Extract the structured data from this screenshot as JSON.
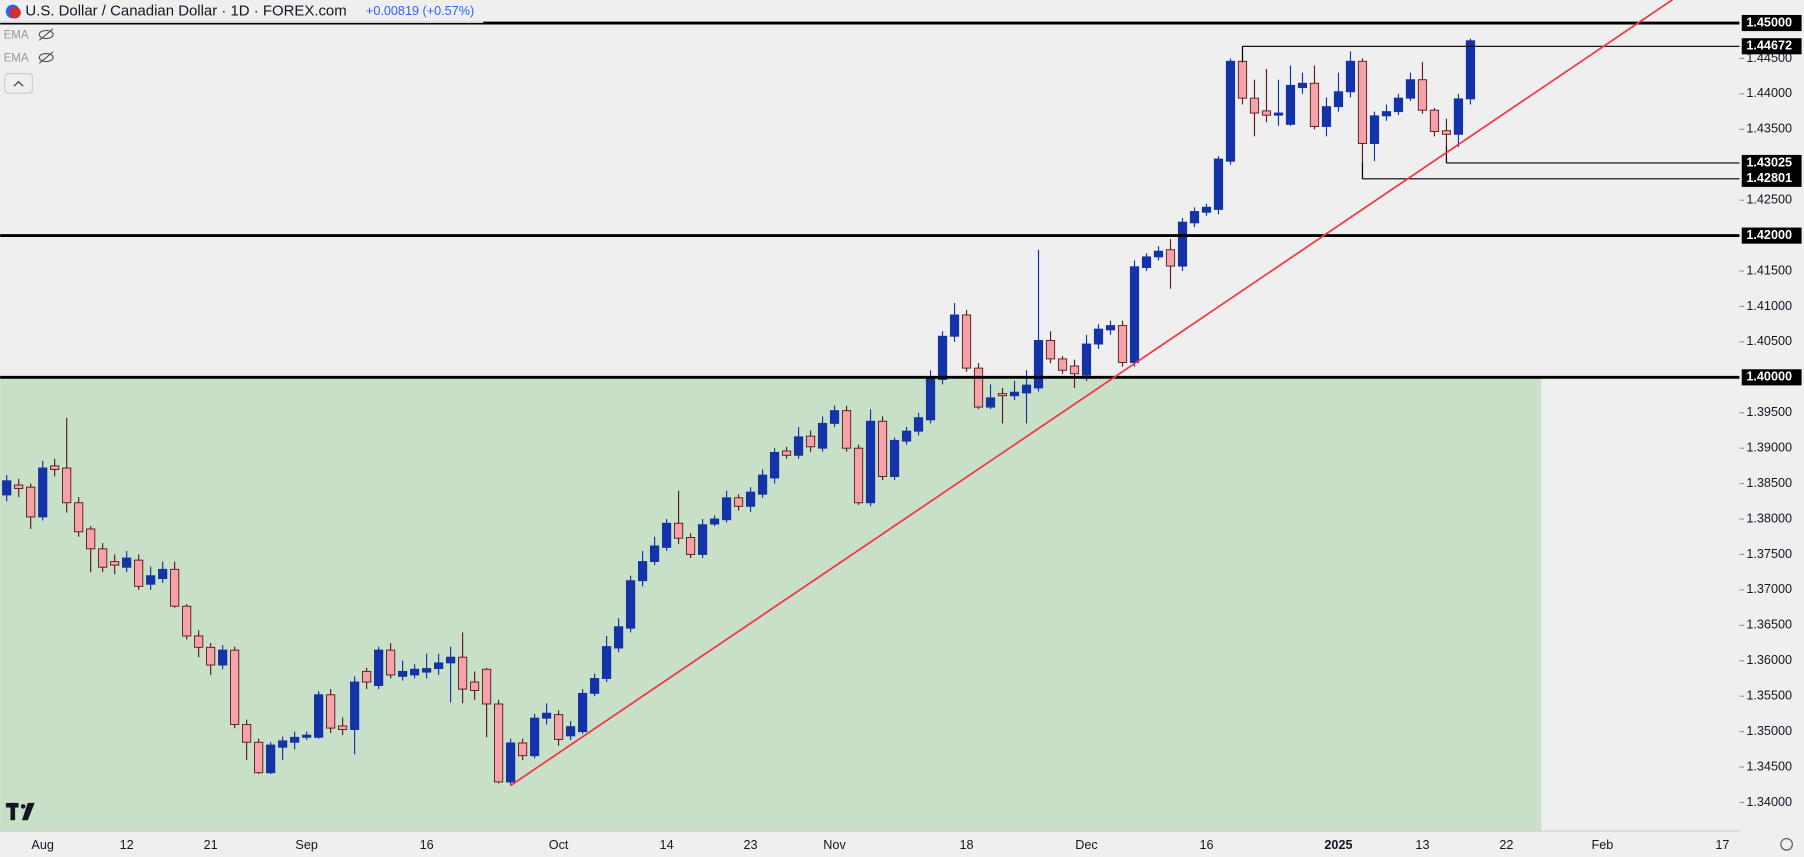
{
  "chart_data": {
    "type": "candlestick",
    "title": "U.S. Dollar / Canadian Dollar · 1D · FOREX.com",
    "change": "+0.00819 (+0.57%)",
    "indicators": [
      "EMA",
      "EMA"
    ],
    "up_color": "#1433a8",
    "down_color": "#f4a4a9",
    "categories": [
      null,
      null,
      null,
      "Aug",
      null,
      null,
      null,
      null,
      null,
      null,
      "12",
      null,
      null,
      null,
      null,
      null,
      null,
      "21",
      null,
      null,
      null,
      null,
      null,
      null,
      null,
      "Sep",
      null,
      null,
      null,
      null,
      null,
      null,
      null,
      null,
      null,
      "16",
      null,
      null,
      null,
      null,
      null,
      null,
      null,
      null,
      null,
      null,
      "Oct",
      null,
      null,
      null,
      null,
      null,
      null,
      null,
      null,
      "14",
      null,
      null,
      null,
      null,
      null,
      null,
      "23",
      null,
      null,
      null,
      null,
      null,
      null,
      "Nov",
      null,
      null,
      null,
      null,
      null,
      null,
      null,
      null,
      null,
      null,
      "18",
      null,
      null,
      null,
      null,
      null,
      null,
      null,
      null,
      null,
      "Dec",
      null,
      null,
      null,
      null,
      null,
      null,
      null,
      null,
      null,
      "16",
      null,
      null,
      null,
      null,
      null,
      null,
      null,
      null,
      null,
      null,
      "2025",
      null,
      null,
      null,
      null,
      null,
      null,
      "13",
      null,
      null,
      null,
      null,
      null,
      null,
      "22",
      null,
      null,
      null,
      null,
      null,
      null,
      null,
      "Feb",
      null,
      null,
      null,
      null,
      null,
      null,
      null,
      null,
      null,
      "17",
      null
    ],
    "open": [
      1.3834,
      1.3848,
      1.3845,
      1.3803,
      1.3875,
      1.3872,
      1.3823,
      1.3786,
      1.3758,
      1.374,
      1.3732,
      1.3742,
      1.3708,
      1.3716,
      1.3729,
      1.3677,
      1.3635,
      1.3619,
      1.3594,
      1.3615,
      1.351,
      1.3485,
      1.3442,
      1.3478,
      1.3485,
      1.3492,
      1.3492,
      1.3552,
      1.3508,
      1.3503,
      1.3585,
      1.3565,
      1.3615,
      1.3578,
      1.358,
      1.3584,
      1.3589,
      1.3597,
      1.3605,
      1.357,
      1.3588,
      1.3539,
      1.3429,
      1.3484,
      1.3466,
      1.3519,
      1.3524,
      1.3494,
      1.35,
      1.3554,
      1.3575,
      1.3618,
      1.3646,
      1.3713,
      1.374,
      1.376,
      1.3794,
      1.3774,
      1.375,
      1.3793,
      1.3799,
      1.383,
      1.3818,
      1.3835,
      1.3858,
      1.3896,
      1.389,
      1.3917,
      1.39,
      1.3935,
      1.3953,
      1.39,
      1.3823,
      1.3938,
      1.386,
      1.391,
      1.3924,
      1.394,
      1.3997,
      1.4058,
      1.4088,
      1.4013,
      1.3958,
      1.3977,
      1.3974,
      1.3978,
      1.3985,
      1.4052,
      1.4026,
      1.4016,
      1.4003,
      1.4047,
      1.4067,
      1.4073,
      1.4021,
      1.4155,
      1.417,
      1.418,
      1.4157,
      1.4218,
      1.4233,
      1.4237,
      1.4305,
      1.4446,
      1.4394,
      1.4376,
      1.437,
      1.4357,
      1.4409,
      1.4415,
      1.4354,
      1.4382,
      1.4403,
      1.4446,
      1.433,
      1.4369,
      1.4375,
      1.4394,
      1.442,
      1.4377,
      1.4348,
      1.4343,
      1.4393,
      null,
      null,
      null,
      null,
      null,
      null,
      null,
      null,
      null,
      null,
      null,
      null,
      null,
      null,
      null,
      null,
      null,
      null,
      null,
      null,
      null,
      null
    ],
    "high": [
      1.3862,
      1.3857,
      1.385,
      1.3882,
      1.3885,
      1.3943,
      1.3831,
      1.379,
      1.3766,
      1.375,
      1.3755,
      1.375,
      1.3733,
      1.374,
      1.374,
      1.368,
      1.3643,
      1.3625,
      1.3622,
      1.362,
      1.3517,
      1.349,
      1.3485,
      1.3493,
      1.35,
      1.35,
      1.3557,
      1.356,
      1.352,
      1.3578,
      1.359,
      1.362,
      1.3625,
      1.36,
      1.3595,
      1.361,
      1.361,
      1.362,
      1.364,
      1.3585,
      1.359,
      1.3545,
      1.349,
      1.349,
      1.3525,
      1.354,
      1.353,
      1.3515,
      1.356,
      1.3582,
      1.3635,
      1.366,
      1.372,
      1.3755,
      1.3775,
      1.38,
      1.384,
      1.378,
      1.38,
      1.3805,
      1.384,
      1.3835,
      1.3845,
      1.387,
      1.39,
      1.3902,
      1.393,
      1.3925,
      1.3945,
      1.396,
      1.396,
      1.3905,
      1.3955,
      1.3945,
      1.3915,
      1.393,
      1.395,
      1.401,
      1.4065,
      1.4105,
      1.4095,
      1.402,
      1.399,
      1.3985,
      1.3995,
      1.401,
      1.418,
      1.4065,
      1.403,
      1.4025,
      1.406,
      1.4075,
      1.408,
      1.408,
      1.4165,
      1.4175,
      1.4185,
      1.4195,
      1.4225,
      1.424,
      1.4245,
      1.4312,
      1.445,
      1.44672,
      1.442,
      1.4435,
      1.442,
      1.444,
      1.443,
      1.444,
      1.4395,
      1.443,
      1.446,
      1.445,
      1.4375,
      1.4385,
      1.44,
      1.443,
      1.4445,
      1.438,
      1.4365,
      1.44,
      1.4478,
      null,
      null,
      null,
      null,
      null,
      null,
      null,
      null,
      null,
      null,
      null,
      null,
      null,
      null,
      null,
      null,
      null,
      null,
      null,
      null,
      null,
      null
    ],
    "low": [
      1.3825,
      1.3831,
      1.3786,
      1.3798,
      1.386,
      1.3809,
      1.3775,
      1.3725,
      1.3725,
      1.3722,
      1.3725,
      1.37,
      1.37,
      1.371,
      1.3675,
      1.363,
      1.3605,
      1.358,
      1.3588,
      1.3505,
      1.346,
      1.344,
      1.344,
      1.346,
      1.3475,
      1.3488,
      1.349,
      1.3498,
      1.3495,
      1.3468,
      1.356,
      1.356,
      1.3575,
      1.3572,
      1.3575,
      1.3575,
      1.358,
      1.3541,
      1.354,
      1.3545,
      1.3492,
      1.3427,
      1.3424,
      1.346,
      1.3462,
      1.351,
      1.348,
      1.3488,
      1.3497,
      1.355,
      1.357,
      1.3612,
      1.364,
      1.3705,
      1.3735,
      1.3755,
      1.3765,
      1.3745,
      1.3745,
      1.379,
      1.3795,
      1.3812,
      1.381,
      1.383,
      1.385,
      1.3885,
      1.3885,
      1.3895,
      1.3895,
      1.393,
      1.3895,
      1.382,
      1.3818,
      1.3855,
      1.3855,
      1.3905,
      1.3918,
      1.3935,
      1.399,
      1.405,
      1.4008,
      1.3955,
      1.3955,
      1.3935,
      1.3968,
      1.3935,
      1.398,
      1.402,
      1.4005,
      1.3985,
      1.3995,
      1.404,
      1.406,
      1.4015,
      1.4015,
      1.415,
      1.4165,
      1.4125,
      1.415,
      1.4212,
      1.4228,
      1.423,
      1.43,
      1.4385,
      1.434,
      1.436,
      1.4355,
      1.4355,
      1.44,
      1.435,
      1.434,
      1.4375,
      1.4395,
      1.42801,
      1.4305,
      1.4362,
      1.437,
      1.439,
      1.4372,
      1.434,
      1.43025,
      1.4325,
      1.4385,
      null,
      null,
      null,
      null,
      null,
      null,
      null,
      null,
      null,
      null,
      null,
      null,
      null,
      null,
      null,
      null,
      null,
      null,
      null,
      null,
      null,
      null
    ],
    "close": [
      1.3854,
      1.3843,
      1.3803,
      1.3872,
      1.387,
      1.3823,
      1.3782,
      1.3758,
      1.3732,
      1.3735,
      1.3745,
      1.3705,
      1.372,
      1.3729,
      1.3677,
      1.3635,
      1.3619,
      1.3594,
      1.3615,
      1.351,
      1.3485,
      1.3442,
      1.3481,
      1.3487,
      1.3492,
      1.3495,
      1.3552,
      1.3505,
      1.3503,
      1.357,
      1.357,
      1.3615,
      1.358,
      1.3585,
      1.3588,
      1.3589,
      1.3597,
      1.3605,
      1.356,
      1.3558,
      1.3539,
      1.3429,
      1.3484,
      1.3466,
      1.3519,
      1.3526,
      1.3489,
      1.3507,
      1.3554,
      1.3575,
      1.362,
      1.3648,
      1.3713,
      1.374,
      1.3762,
      1.3794,
      1.3773,
      1.375,
      1.3792,
      1.38,
      1.383,
      1.3818,
      1.3838,
      1.3862,
      1.3894,
      1.389,
      1.3916,
      1.3902,
      1.3935,
      1.3953,
      1.39,
      1.3823,
      1.3938,
      1.386,
      1.3911,
      1.3924,
      1.3943,
      1.4,
      1.4058,
      1.4088,
      1.4013,
      1.3958,
      1.3971,
      1.3974,
      1.3979,
      1.3989,
      1.4052,
      1.4026,
      1.401,
      1.4005,
      1.4047,
      1.4068,
      1.4073,
      1.4021,
      1.4156,
      1.417,
      1.4178,
      1.4157,
      1.4219,
      1.4234,
      1.424,
      1.4308,
      1.4446,
      1.4394,
      1.4373,
      1.437,
      1.4373,
      1.4412,
      1.4415,
      1.4354,
      1.4382,
      1.4403,
      1.4446,
      1.433,
      1.4369,
      1.4375,
      1.4394,
      1.442,
      1.4377,
      1.4347,
      1.4343,
      1.4393,
      1.4475,
      null,
      null,
      null,
      null,
      null,
      null,
      null,
      null,
      null,
      null,
      null,
      null,
      null,
      null,
      null,
      null,
      null,
      null,
      null,
      null,
      null,
      null
    ],
    "ylim": [
      1.33604,
      1.45325
    ],
    "yticks": [
      {
        "value": 1.34,
        "label": "1.34000"
      },
      {
        "value": 1.345,
        "label": "1.34500"
      },
      {
        "value": 1.35,
        "label": "1.35000"
      },
      {
        "value": 1.355,
        "label": "1.35500"
      },
      {
        "value": 1.36,
        "label": "1.36000"
      },
      {
        "value": 1.365,
        "label": "1.36500"
      },
      {
        "value": 1.37,
        "label": "1.37000"
      },
      {
        "value": 1.375,
        "label": "1.37500"
      },
      {
        "value": 1.38,
        "label": "1.38000"
      },
      {
        "value": 1.385,
        "label": "1.38500"
      },
      {
        "value": 1.39,
        "label": "1.39000"
      },
      {
        "value": 1.395,
        "label": "1.39500"
      },
      {
        "value": 1.405,
        "label": "1.40500"
      },
      {
        "value": 1.41,
        "label": "1.41000"
      },
      {
        "value": 1.415,
        "label": "1.41500"
      },
      {
        "value": 1.425,
        "label": "1.42500"
      },
      {
        "value": 1.435,
        "label": "1.43500"
      },
      {
        "value": 1.44,
        "label": "1.44000"
      },
      {
        "value": 1.445,
        "label": "1.44500"
      }
    ],
    "hlines": [
      {
        "value": 1.45,
        "label": "1.45000"
      },
      {
        "value": 1.42,
        "label": "1.42000"
      },
      {
        "value": 1.4,
        "label": "1.40000"
      }
    ],
    "levels": [
      {
        "value": 1.44672,
        "label": "1.44672"
      },
      {
        "value": 1.43025,
        "label": "1.43025"
      },
      {
        "value": 1.42801,
        "label": "1.42801"
      }
    ],
    "zone_color": "#c8dfc8",
    "trendline": {
      "color": "#f23645",
      "points": [
        [
          42,
          1.3424
        ],
        [
          93,
          1.4008
        ]
      ]
    }
  }
}
